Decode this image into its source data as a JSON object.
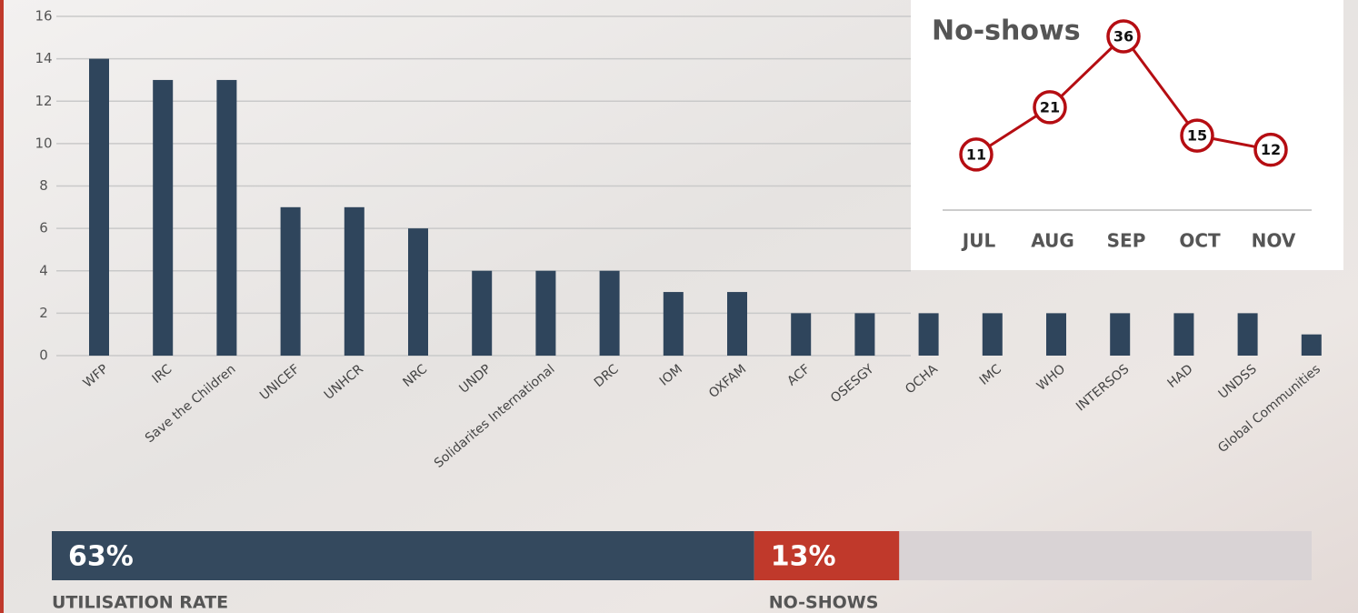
{
  "chart_data": [
    {
      "type": "bar",
      "categories": [
        "WFP",
        "IRC",
        "Save the Children",
        "UNICEF",
        "UNHCR",
        "NRC",
        "UNDP",
        "Solidarites International",
        "DRC",
        "IOM",
        "OXFAM",
        "ACF",
        "OSESGY",
        "OCHA",
        "IMC",
        "WHO",
        "INTERSOS",
        "HAD",
        "UNDSS",
        "Global Communities"
      ],
      "values": [
        14,
        13,
        13,
        7,
        7,
        6,
        4,
        4,
        4,
        3,
        3,
        2,
        2,
        2,
        2,
        2,
        2,
        2,
        2,
        1
      ],
      "color": "#2f455c",
      "ylim": [
        0,
        16
      ],
      "yticks": [
        0,
        2,
        4,
        6,
        8,
        10,
        12,
        14,
        16
      ],
      "grid": true
    },
    {
      "type": "line",
      "title": "No-shows",
      "categories": [
        "JUL",
        "AUG",
        "SEP",
        "OCT",
        "NOV"
      ],
      "values": [
        11,
        21,
        36,
        15,
        12
      ],
      "color": "#b50d12"
    },
    {
      "type": "hbar",
      "series": [
        {
          "name": "UTILISATION RATE",
          "color": "#34495e",
          "values": [
            63
          ],
          "value_labels": [
            "63%"
          ]
        },
        {
          "name": "NO-SHOWS",
          "color": "#c0392b",
          "values": [
            13
          ],
          "value_labels": [
            "13%"
          ]
        }
      ],
      "xlim": [
        0,
        113
      ],
      "track_color": "#d9d3d5"
    }
  ]
}
